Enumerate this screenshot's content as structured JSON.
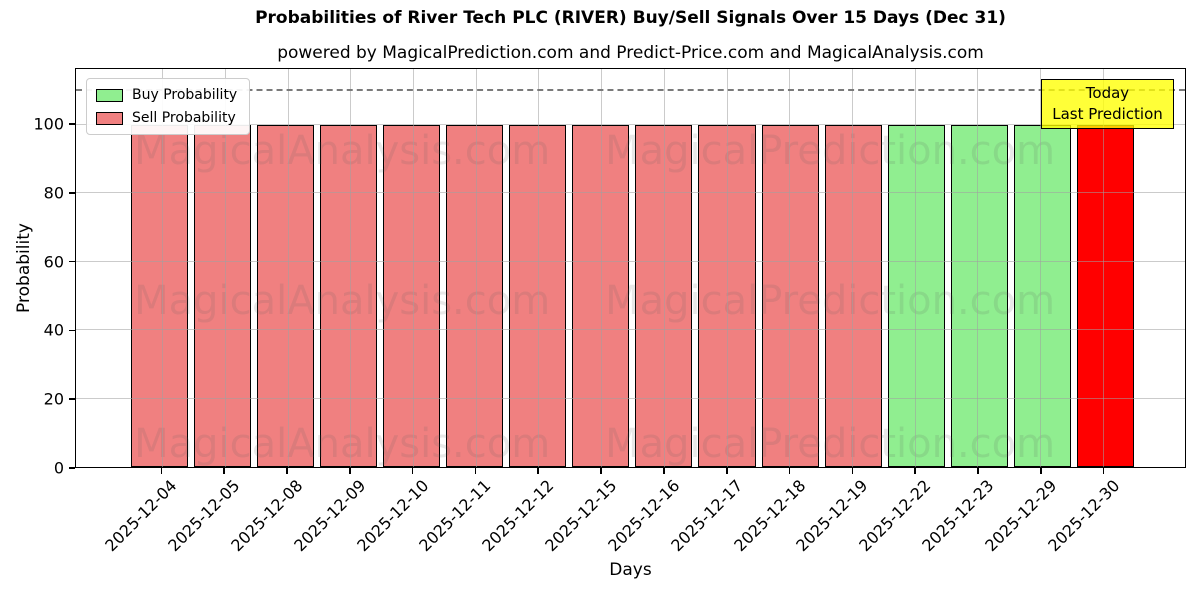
{
  "chart_data": {
    "type": "bar",
    "title": "Probabilities of River Tech PLC (RIVER) Buy/Sell Signals Over 15 Days (Dec 31)",
    "subtitle": "powered by MagicalPrediction.com and Predict-Price.com and MagicalAnalysis.com",
    "xlabel": "Days",
    "ylabel": "Probability",
    "ylim": [
      0,
      116.3
    ],
    "yticks": [
      0,
      20,
      40,
      60,
      80,
      100
    ],
    "reference_line": 110,
    "grid": true,
    "categories": [
      "2025-12-04",
      "2025-12-05",
      "2025-12-08",
      "2025-12-09",
      "2025-12-10",
      "2025-12-11",
      "2025-12-12",
      "2025-12-15",
      "2025-12-16",
      "2025-12-17",
      "2025-12-18",
      "2025-12-19",
      "2025-12-22",
      "2025-12-23",
      "2025-12-29",
      "2025-12-30"
    ],
    "bars": [
      {
        "label": "2025-12-04",
        "value": 100,
        "signal": "sell"
      },
      {
        "label": "2025-12-05",
        "value": 100,
        "signal": "sell"
      },
      {
        "label": "2025-12-08",
        "value": 100,
        "signal": "sell"
      },
      {
        "label": "2025-12-09",
        "value": 100,
        "signal": "sell"
      },
      {
        "label": "2025-12-10",
        "value": 100,
        "signal": "sell"
      },
      {
        "label": "2025-12-11",
        "value": 100,
        "signal": "sell"
      },
      {
        "label": "2025-12-12",
        "value": 100,
        "signal": "sell"
      },
      {
        "label": "2025-12-15",
        "value": 100,
        "signal": "sell"
      },
      {
        "label": "2025-12-16",
        "value": 100,
        "signal": "sell"
      },
      {
        "label": "2025-12-17",
        "value": 100,
        "signal": "sell"
      },
      {
        "label": "2025-12-18",
        "value": 100,
        "signal": "sell"
      },
      {
        "label": "2025-12-19",
        "value": 100,
        "signal": "sell"
      },
      {
        "label": "2025-12-22",
        "value": 100,
        "signal": "buy"
      },
      {
        "label": "2025-12-23",
        "value": 100,
        "signal": "buy"
      },
      {
        "label": "2025-12-29",
        "value": 100,
        "signal": "buy"
      },
      {
        "label": "2025-12-30",
        "value": 100,
        "signal": "last_prediction"
      }
    ],
    "legend": [
      {
        "label": "Buy Probability",
        "color": "#90ee90"
      },
      {
        "label": "Sell Probability",
        "color": "#f08080"
      }
    ],
    "colors": {
      "buy": "#90ee90",
      "sell": "#f08080",
      "last_prediction": "#ff0000",
      "annotation_bg": "#ffff00",
      "bar_edge": "#000000",
      "grid": "#b0b0b0"
    },
    "annotation": {
      "line1": "Today",
      "line2": "Last Prediction"
    },
    "watermarks": [
      "MagicalAnalysis.com",
      "MagicalPrediction.com"
    ],
    "legend_position": "upper left",
    "annotation_position": "upper right"
  }
}
